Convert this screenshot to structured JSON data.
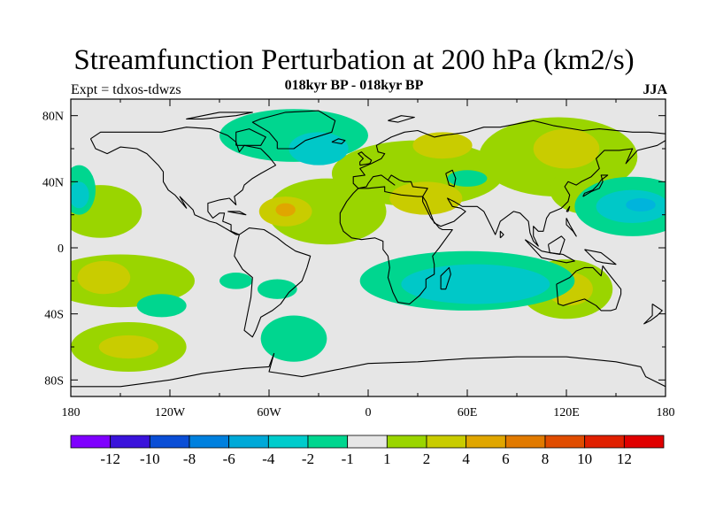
{
  "title": "Streamfunction Perturbation at 200 hPa (km2/s)",
  "subtitle": "018kyr BP - 018kyr BP",
  "left_label": "Expt = tdxos-tdwzs",
  "right_label": "JJA",
  "map": {
    "lon_range": [
      -180,
      180
    ],
    "lat_range": [
      -90,
      90
    ],
    "lat_ticks": [
      "80N",
      "40N",
      "0",
      "40S",
      "80S"
    ],
    "lon_ticks": [
      "180",
      "120W",
      "60W",
      "0",
      "60E",
      "120E",
      "180"
    ],
    "background_color": "#e6e6e6",
    "fields": [
      {
        "level": 1,
        "color": "#9ad500",
        "regions": [
          {
            "name": "central-pacific-north",
            "lon": -162,
            "lat": 22,
            "rx": 25,
            "ry": 16
          },
          {
            "name": "tropical-atlantic",
            "lon": -25,
            "lat": 22,
            "rx": 36,
            "ry": 20
          },
          {
            "name": "mediterranean-band",
            "lon": 30,
            "lat": 45,
            "rx": 52,
            "ry": 20
          },
          {
            "name": "siberia",
            "lon": 115,
            "lat": 55,
            "rx": 48,
            "ry": 24
          },
          {
            "name": "south-pacific",
            "lon": -150,
            "lat": -20,
            "rx": 45,
            "ry": 16
          },
          {
            "name": "australia",
            "lon": 120,
            "lat": -25,
            "rx": 28,
            "ry": 18
          },
          {
            "name": "southern-ocean-pacific",
            "lon": -145,
            "lat": -60,
            "rx": 35,
            "ry": 15
          },
          {
            "name": "east-asia-pacific",
            "lon": 135,
            "lat": 35,
            "rx": 25,
            "ry": 15
          }
        ]
      },
      {
        "level": 2,
        "color": "#c9cc00",
        "regions": [
          {
            "name": "atlantic-core",
            "lon": -50,
            "lat": 22,
            "rx": 16,
            "ry": 9
          },
          {
            "name": "north-africa",
            "lon": 35,
            "lat": 30,
            "rx": 22,
            "ry": 10
          },
          {
            "name": "east-europe",
            "lon": 45,
            "lat": 62,
            "rx": 18,
            "ry": 8
          },
          {
            "name": "asia-core",
            "lon": 120,
            "lat": 60,
            "rx": 20,
            "ry": 12
          },
          {
            "name": "pacific-south-core",
            "lon": -160,
            "lat": -18,
            "rx": 16,
            "ry": 10
          },
          {
            "name": "australia-core",
            "lon": 122,
            "lat": -25,
            "rx": 14,
            "ry": 10
          },
          {
            "name": "southern-core",
            "lon": -145,
            "lat": -60,
            "rx": 18,
            "ry": 7
          }
        ]
      },
      {
        "level": 4,
        "color": "#e0a600",
        "regions": [
          {
            "name": "atlantic-peak",
            "lon": -50,
            "lat": 23,
            "rx": 6,
            "ry": 4
          }
        ]
      },
      {
        "level": -1,
        "color": "#00d68f",
        "regions": [
          {
            "name": "greenland",
            "lon": -45,
            "lat": 68,
            "rx": 45,
            "ry": 16
          },
          {
            "name": "north-pacific-east",
            "lon": -175,
            "lat": 35,
            "rx": 10,
            "ry": 15
          },
          {
            "name": "east-pacific",
            "lon": 160,
            "lat": 25,
            "rx": 35,
            "ry": 18
          },
          {
            "name": "indian-ocean",
            "lon": 60,
            "lat": -20,
            "rx": 65,
            "ry": 18
          },
          {
            "name": "south-atlantic",
            "lon": -45,
            "lat": -55,
            "rx": 20,
            "ry": 14
          },
          {
            "name": "south-america-south",
            "lon": -55,
            "lat": -25,
            "rx": 12,
            "ry": 6
          },
          {
            "name": "south-pacific-east",
            "lon": -125,
            "lat": -35,
            "rx": 15,
            "ry": 7
          },
          {
            "name": "central-asia",
            "lon": 60,
            "lat": 42,
            "rx": 12,
            "ry": 5
          },
          {
            "name": "atlantic-west",
            "lon": -80,
            "lat": -20,
            "rx": 10,
            "ry": 5
          }
        ]
      },
      {
        "level": -2,
        "color": "#00c8c8",
        "regions": [
          {
            "name": "greenland-core",
            "lon": -30,
            "lat": 60,
            "rx": 18,
            "ry": 10
          },
          {
            "name": "east-pacific-core",
            "lon": 160,
            "lat": 25,
            "rx": 22,
            "ry": 10
          },
          {
            "name": "indian-core",
            "lon": 65,
            "lat": -22,
            "rx": 45,
            "ry": 12
          },
          {
            "name": "north-pacific-east-core",
            "lon": -175,
            "lat": 32,
            "rx": 6,
            "ry": 8
          }
        ]
      },
      {
        "level": -4,
        "color": "#00b4dc",
        "regions": [
          {
            "name": "pacific-min",
            "lon": 165,
            "lat": 26,
            "rx": 9,
            "ry": 4
          }
        ]
      }
    ]
  },
  "colorbar": {
    "colors": [
      "#7f00ff",
      "#3a13db",
      "#0a4ed6",
      "#0080de",
      "#00a9d8",
      "#00cccc",
      "#00d68f",
      "#e6e6e6",
      "#9ad500",
      "#c9cc00",
      "#e0a600",
      "#e17a00",
      "#e04c00",
      "#e02000",
      "#e00000"
    ],
    "labels": [
      "-12",
      "-10",
      "-8",
      "-6",
      "-4",
      "-2",
      "-1",
      "1",
      "2",
      "4",
      "6",
      "8",
      "10",
      "12"
    ]
  }
}
